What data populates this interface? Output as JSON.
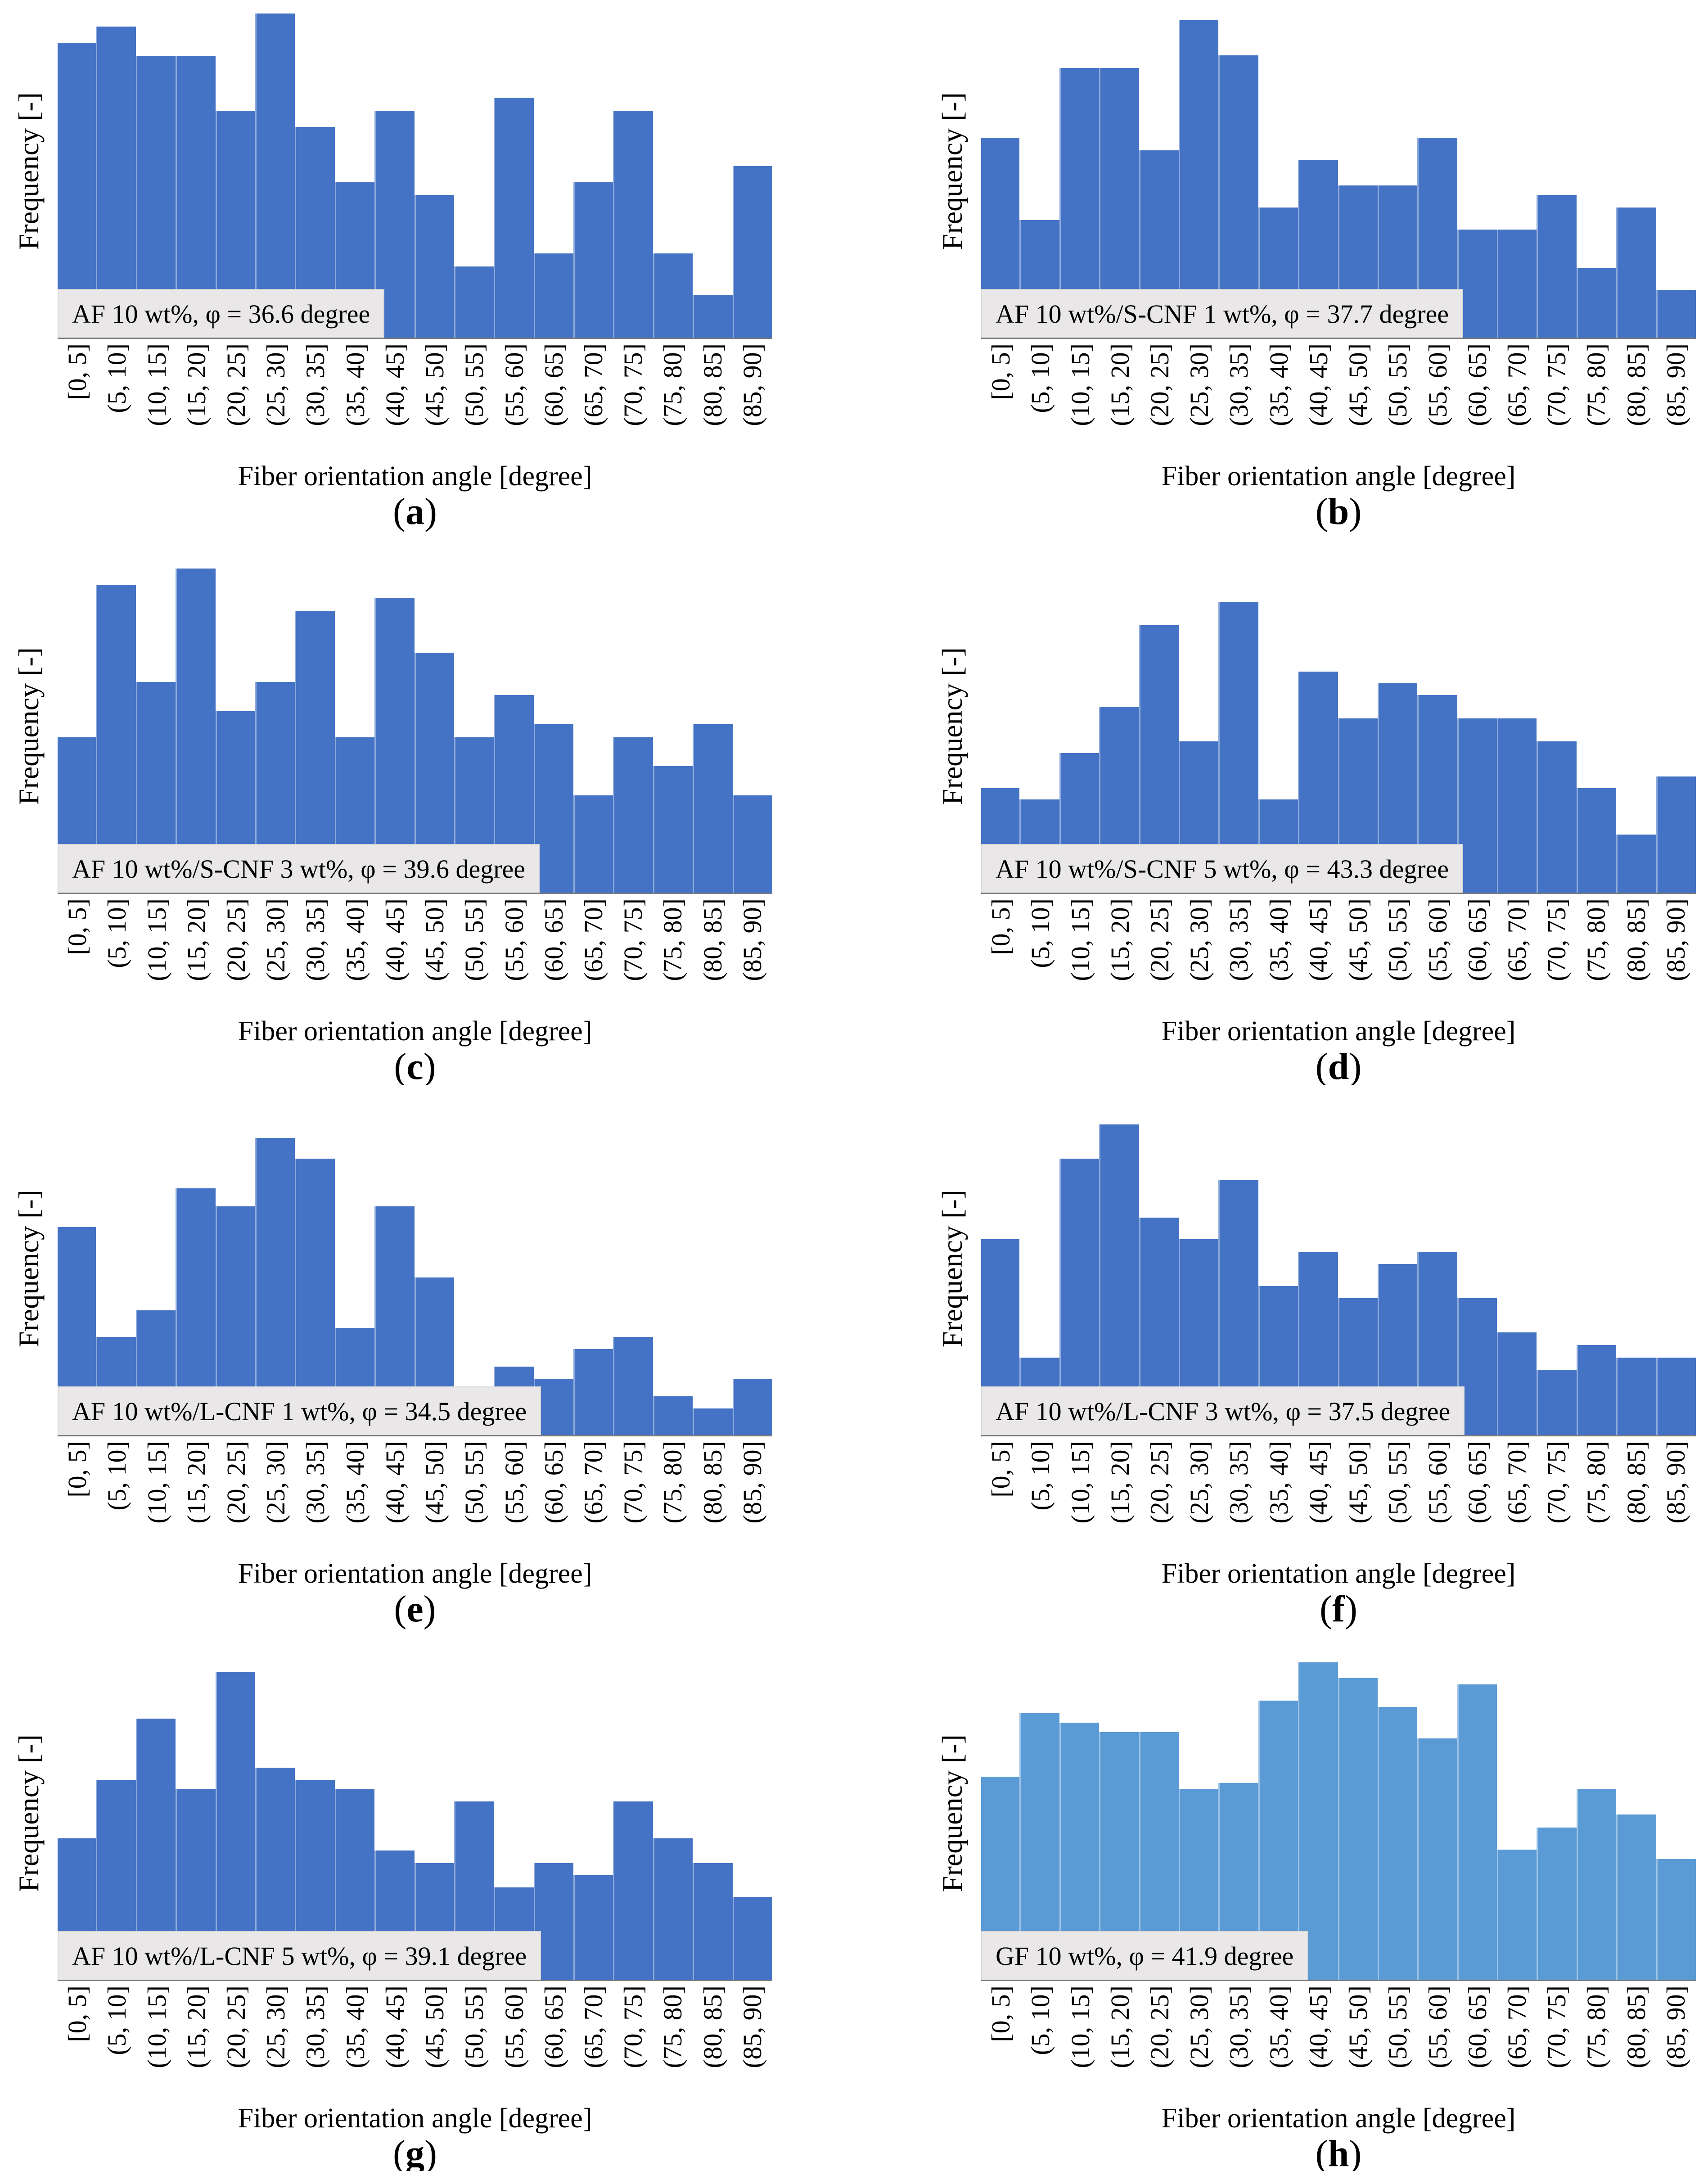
{
  "figure": {
    "description": "Histograms of fiber orientation angle distributions for eight composite samples",
    "x_axis_title": "Fiber orientation angle [degree]",
    "y_axis_title": "Frequency [-]"
  },
  "colors": {
    "bar_blue": "#4472C4",
    "bar_light_blue": "#5B9BD5",
    "annotation_background": "#E9E7E7",
    "axis_line": "#7A7A7A",
    "text": "#000000"
  },
  "chart_data": [
    {
      "type": "bar",
      "panel_label": "(a)",
      "panel_letter": "a",
      "title": "AF 10 wt%, φ = 36.6 degree",
      "xlabel": "Fiber orientation angle [degree]",
      "ylabel": "Frequency [-]",
      "categories": [
        "[0, 5]",
        "(5, 10]",
        "(10, 15]",
        "(15, 20]",
        "(20, 25]",
        "(25, 30]",
        "(30, 35]",
        "(35, 40]",
        "(40, 45]",
        "(45, 50]",
        "(50, 55]",
        "(55, 60]",
        "(60, 65]",
        "(65, 70]",
        "(70, 75]",
        "(75, 80]",
        "(80, 85]",
        "(85, 90]"
      ],
      "values": [
        0.91,
        0.96,
        0.87,
        0.87,
        0.7,
        1.0,
        0.65,
        0.48,
        0.7,
        0.44,
        0.22,
        0.74,
        0.26,
        0.48,
        0.7,
        0.26,
        0.13,
        0.53
      ],
      "value_scale": "relative frequency, tallest bin = 1.0 (y-axis unlabeled)",
      "bar_color": "#4472C4",
      "tallest_bar_plot_fraction": 0.97,
      "grid": false,
      "legend": false
    },
    {
      "type": "bar",
      "panel_label": "(b)",
      "panel_letter": "b",
      "title": "AF 10 wt%/S-CNF 1 wt%, φ = 37.7 degree",
      "xlabel": "Fiber orientation angle [degree]",
      "ylabel": "Frequency [-]",
      "categories": [
        "[0, 5]",
        "(5, 10]",
        "(10, 15]",
        "(15, 20]",
        "(20, 25]",
        "(25, 30]",
        "(30, 35]",
        "(35, 40]",
        "(40, 45]",
        "(45, 50]",
        "(50, 55]",
        "(55, 60]",
        "(60, 65]",
        "(65, 70]",
        "(70, 75]",
        "(75, 80]",
        "(80, 85]",
        "(85, 90]"
      ],
      "values": [
        0.63,
        0.37,
        0.85,
        0.85,
        0.59,
        1.0,
        0.89,
        0.41,
        0.56,
        0.48,
        0.48,
        0.63,
        0.34,
        0.34,
        0.45,
        0.22,
        0.41,
        0.15
      ],
      "value_scale": "relative frequency, tallest bin = 1.0 (y-axis unlabeled)",
      "bar_color": "#4472C4",
      "tallest_bar_plot_fraction": 0.95,
      "grid": false,
      "legend": false
    },
    {
      "type": "bar",
      "panel_label": "(c)",
      "panel_letter": "c",
      "title": "AF 10 wt%/S-CNF 3 wt%, φ = 39.6 degree",
      "xlabel": "Fiber orientation angle [degree]",
      "ylabel": "Frequency [-]",
      "categories": [
        "[0, 5]",
        "(5, 10]",
        "(10, 15]",
        "(15, 20]",
        "(20, 25]",
        "(25, 30]",
        "(30, 35]",
        "(35, 40]",
        "(40, 45]",
        "(45, 50]",
        "(50, 55]",
        "(55, 60]",
        "(60, 65]",
        "(65, 70]",
        "(70, 75]",
        "(75, 80]",
        "(80, 85]",
        "(85, 90]"
      ],
      "values": [
        0.48,
        0.95,
        0.65,
        1.0,
        0.56,
        0.65,
        0.87,
        0.48,
        0.91,
        0.74,
        0.48,
        0.61,
        0.52,
        0.3,
        0.48,
        0.39,
        0.52,
        0.3
      ],
      "value_scale": "relative frequency, tallest bin = 1.0 (y-axis unlabeled)",
      "bar_color": "#4472C4",
      "tallest_bar_plot_fraction": 0.97,
      "grid": false,
      "legend": false
    },
    {
      "type": "bar",
      "panel_label": "(d)",
      "panel_letter": "d",
      "title": "AF 10 wt%/S-CNF 5 wt%, φ = 43.3 degree",
      "xlabel": "Fiber orientation angle [degree]",
      "ylabel": "Frequency [-]",
      "categories": [
        "[0, 5]",
        "(5, 10]",
        "(10, 15]",
        "(15, 20]",
        "(20, 25]",
        "(25, 30]",
        "(30, 35]",
        "(35, 40]",
        "(40, 45]",
        "(45, 50]",
        "(50, 55]",
        "(55, 60]",
        "(60, 65]",
        "(65, 70]",
        "(70, 75]",
        "(75, 80]",
        "(80, 85]",
        "(85, 90]"
      ],
      "values": [
        0.36,
        0.32,
        0.48,
        0.64,
        0.92,
        0.52,
        1.0,
        0.32,
        0.76,
        0.6,
        0.72,
        0.68,
        0.6,
        0.6,
        0.52,
        0.36,
        0.2,
        0.4
      ],
      "value_scale": "relative frequency, tallest bin = 1.0 (y-axis unlabeled)",
      "bar_color": "#4472C4",
      "tallest_bar_plot_fraction": 0.87,
      "grid": false,
      "legend": false
    },
    {
      "type": "bar",
      "panel_label": "(e)",
      "panel_letter": "e",
      "title": "AF 10 wt%/L-CNF 1 wt%, φ = 34.5 degree",
      "xlabel": "Fiber orientation angle [degree]",
      "ylabel": "Frequency [-]",
      "categories": [
        "[0, 5]",
        "(5, 10]",
        "(10, 15]",
        "(15, 20]",
        "(20, 25]",
        "(25, 30]",
        "(30, 35]",
        "(35, 40]",
        "(40, 45]",
        "(45, 50]",
        "(50, 55]",
        "(55, 60]",
        "(60, 65]",
        "(65, 70]",
        "(70, 75]",
        "(75, 80]",
        "(80, 85]",
        "(85, 90]"
      ],
      "values": [
        0.7,
        0.33,
        0.42,
        0.83,
        0.77,
        1.0,
        0.93,
        0.36,
        0.77,
        0.53,
        0.16,
        0.23,
        0.19,
        0.29,
        0.33,
        0.13,
        0.09,
        0.19
      ],
      "value_scale": "relative frequency, tallest bin = 1.0 (y-axis unlabeled)",
      "bar_color": "#4472C4",
      "tallest_bar_plot_fraction": 0.89,
      "grid": false,
      "legend": false
    },
    {
      "type": "bar",
      "panel_label": "(f)",
      "panel_letter": "f",
      "title": "AF 10 wt%/L-CNF 3 wt%, φ = 37.5 degree",
      "xlabel": "Fiber orientation angle [degree]",
      "ylabel": "Frequency [-]",
      "categories": [
        "[0, 5]",
        "(5, 10]",
        "(10, 15]",
        "(15, 20]",
        "(20, 25]",
        "(25, 30]",
        "(30, 35]",
        "(35, 40]",
        "(40, 45]",
        "(45, 50]",
        "(50, 55]",
        "(55, 60]",
        "(60, 65]",
        "(65, 70]",
        "(70, 75]",
        "(75, 80]",
        "(80, 85]",
        "(85, 90]"
      ],
      "values": [
        0.63,
        0.25,
        0.89,
        1.0,
        0.7,
        0.63,
        0.82,
        0.48,
        0.59,
        0.44,
        0.55,
        0.59,
        0.44,
        0.33,
        0.21,
        0.29,
        0.25,
        0.25
      ],
      "value_scale": "relative frequency, tallest bin = 1.0 (y-axis unlabeled)",
      "bar_color": "#4472C4",
      "tallest_bar_plot_fraction": 0.93,
      "grid": false,
      "legend": false
    },
    {
      "type": "bar",
      "panel_label": "(g)",
      "panel_letter": "g",
      "title": "AF 10 wt%/L-CNF 5 wt%, φ = 39.1 degree",
      "xlabel": "Fiber orientation angle [degree]",
      "ylabel": "Frequency [-]",
      "categories": [
        "[0, 5]",
        "(5, 10]",
        "(10, 15]",
        "(15, 20]",
        "(20, 25]",
        "(25, 30]",
        "(30, 35]",
        "(35, 40]",
        "(40, 45]",
        "(45, 50]",
        "(50, 55]",
        "(55, 60]",
        "(60, 65]",
        "(65, 70]",
        "(70, 75]",
        "(75, 80]",
        "(80, 85]",
        "(85, 90]"
      ],
      "values": [
        0.46,
        0.65,
        0.85,
        0.62,
        1.0,
        0.69,
        0.65,
        0.62,
        0.42,
        0.38,
        0.58,
        0.3,
        0.38,
        0.34,
        0.58,
        0.46,
        0.38,
        0.27
      ],
      "value_scale": "relative frequency, tallest bin = 1.0 (y-axis unlabeled)",
      "bar_color": "#4472C4",
      "tallest_bar_plot_fraction": 0.92,
      "grid": false,
      "legend": false
    },
    {
      "type": "bar",
      "panel_label": "(h)",
      "panel_letter": "h",
      "title": "GF 10 wt%, φ = 41.9 degree",
      "xlabel": "Fiber orientation angle [degree]",
      "ylabel": "Frequency [-]",
      "categories": [
        "[0, 5]",
        "(5, 10]",
        "(10, 15]",
        "(15, 20]",
        "(20, 25]",
        "(25, 30]",
        "(30, 35]",
        "(35, 40]",
        "(40, 45]",
        "(45, 50]",
        "(50, 55]",
        "(55, 60]",
        "(60, 65]",
        "(65, 70]",
        "(70, 75]",
        "(75, 80]",
        "(80, 85]",
        "(85, 90]"
      ],
      "values": [
        0.64,
        0.84,
        0.81,
        0.78,
        0.78,
        0.6,
        0.62,
        0.88,
        1.0,
        0.95,
        0.86,
        0.76,
        0.93,
        0.41,
        0.48,
        0.6,
        0.52,
        0.38
      ],
      "value_scale": "relative frequency, tallest bin = 1.0 (y-axis unlabeled)",
      "bar_color": "#5B9BD5",
      "tallest_bar_plot_fraction": 0.95,
      "grid": false,
      "legend": false
    }
  ]
}
